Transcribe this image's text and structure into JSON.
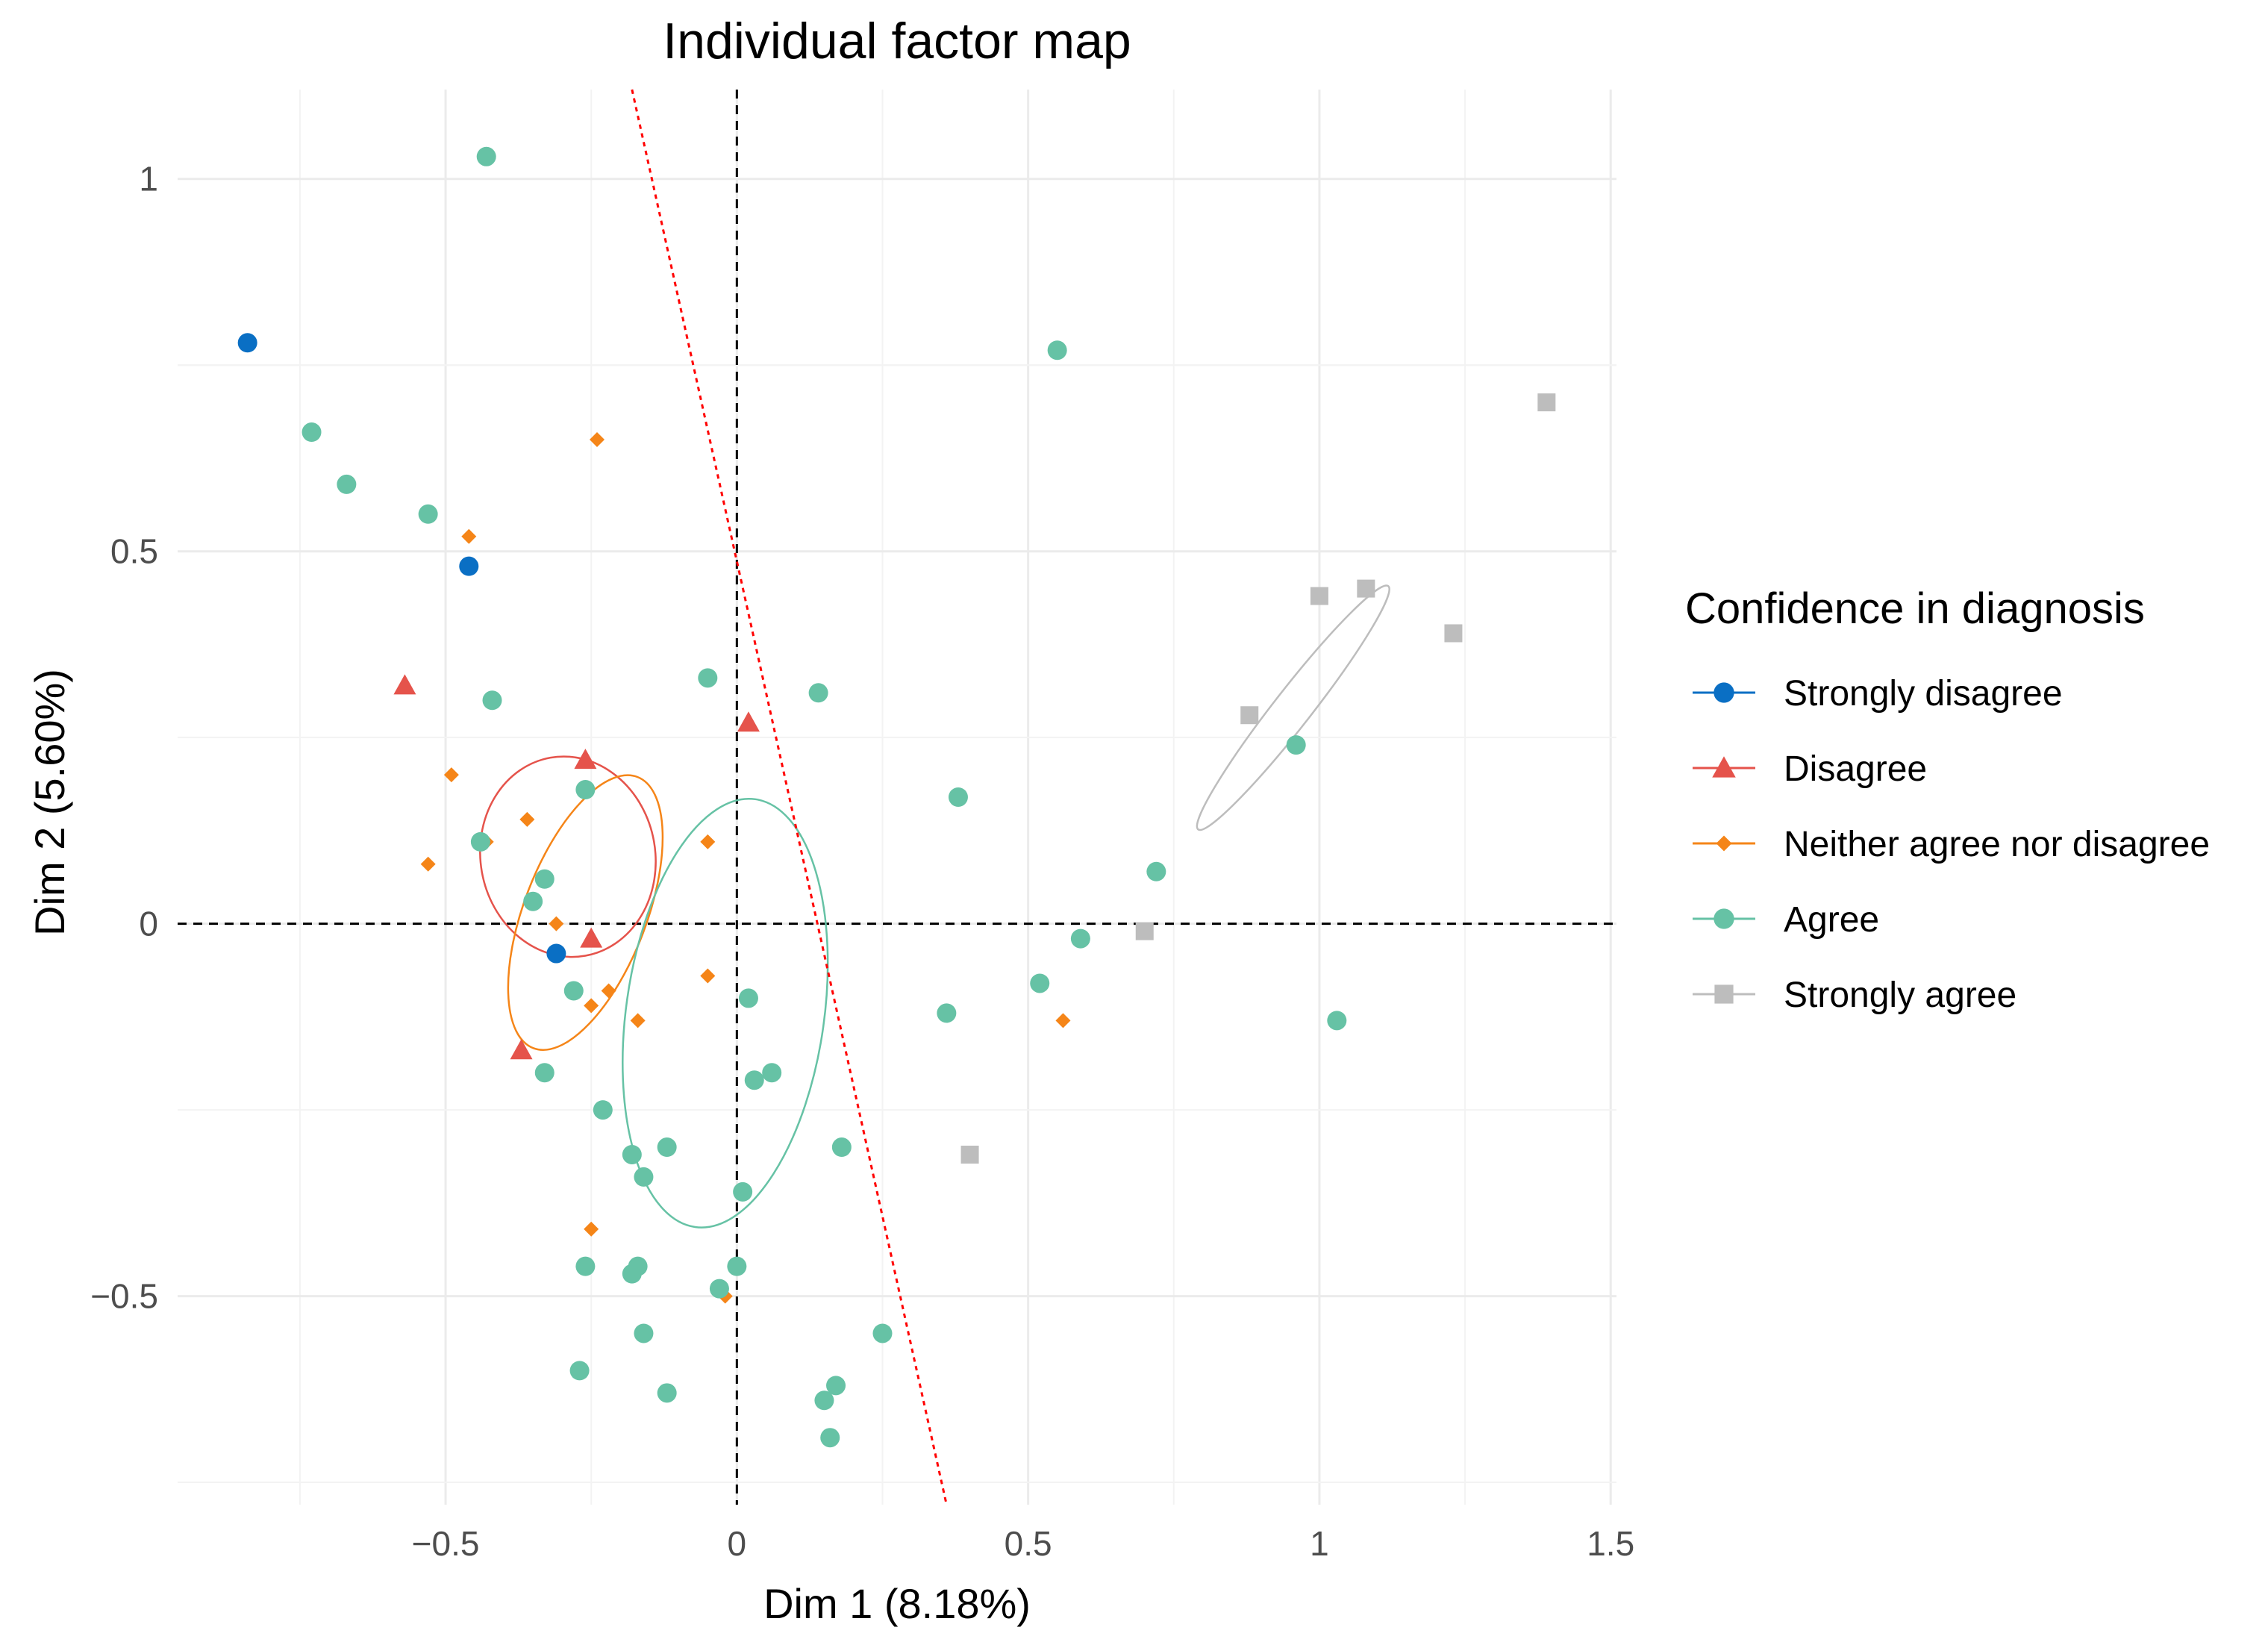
{
  "chart_data": {
    "type": "scatter",
    "title": "Individual factor map",
    "xlabel": "Dim 1 (8.18%)",
    "ylabel": "Dim 2 (5.60%)",
    "xlim": [
      -0.96,
      1.51
    ],
    "ylim": [
      -0.78,
      1.12
    ],
    "grid": true,
    "x_ticks": [
      -0.5,
      0,
      0.5,
      1,
      1.5
    ],
    "x_tick_labels": [
      "−0.5",
      "0",
      "0.5",
      "1",
      "1.5"
    ],
    "y_ticks": [
      -0.5,
      0,
      0.5,
      1
    ],
    "y_tick_labels": [
      "−0.5",
      "0",
      "0.5",
      "1"
    ],
    "reference_lines": {
      "x": 0,
      "y": 0,
      "style": "dashed"
    },
    "separator_line": {
      "color": "#ff0000",
      "style": "dotted",
      "from": [
        -0.18,
        1.12
      ],
      "to": [
        0.36,
        -0.78
      ]
    },
    "legend": {
      "title": "Confidence in diagnosis",
      "position": "right"
    },
    "series": [
      {
        "name": "Strongly disagree",
        "color": "#0a6fc4",
        "marker": "circle",
        "points": [
          [
            -0.84,
            0.78
          ],
          [
            -0.46,
            0.48
          ],
          [
            -0.31,
            -0.04
          ]
        ]
      },
      {
        "name": "Disagree",
        "color": "#e5534b",
        "marker": "triangle",
        "points": [
          [
            -0.57,
            0.32
          ],
          [
            -0.26,
            0.22
          ],
          [
            0.02,
            0.27
          ],
          [
            -0.25,
            -0.02
          ],
          [
            -0.37,
            -0.17
          ]
        ],
        "ellipse": {
          "cx": -0.29,
          "cy": 0.09,
          "rx": 0.15,
          "ry": 0.135,
          "angle_deg": -10
        }
      },
      {
        "name": "Neither agree nor disagree",
        "color": "#f58518",
        "marker": "diamond",
        "points": [
          [
            -0.24,
            0.65
          ],
          [
            -0.46,
            0.52
          ],
          [
            -0.49,
            0.2
          ],
          [
            -0.36,
            0.14
          ],
          [
            -0.43,
            0.11
          ],
          [
            -0.53,
            0.08
          ],
          [
            -0.05,
            0.11
          ],
          [
            -0.31,
            0.0
          ],
          [
            -0.05,
            -0.07
          ],
          [
            -0.22,
            -0.09
          ],
          [
            -0.25,
            -0.11
          ],
          [
            -0.17,
            -0.13
          ],
          [
            0.56,
            -0.13
          ],
          [
            -0.25,
            -0.41
          ],
          [
            -0.02,
            -0.5
          ]
        ],
        "ellipse": {
          "cx": -0.26,
          "cy": 0.015,
          "rx": 0.105,
          "ry": 0.195,
          "angle_deg": 21
        }
      },
      {
        "name": "Agree",
        "color": "#66c2a5",
        "marker": "circle",
        "points": [
          [
            -0.43,
            1.03
          ],
          [
            0.55,
            0.77
          ],
          [
            -0.73,
            0.66
          ],
          [
            -0.67,
            0.59
          ],
          [
            -0.53,
            0.55
          ],
          [
            -0.05,
            0.33
          ],
          [
            0.14,
            0.31
          ],
          [
            -0.42,
            0.3
          ],
          [
            -0.26,
            0.18
          ],
          [
            0.38,
            0.17
          ],
          [
            0.96,
            0.24
          ],
          [
            -0.44,
            0.11
          ],
          [
            -0.33,
            0.06
          ],
          [
            -0.35,
            0.03
          ],
          [
            0.72,
            0.07
          ],
          [
            0.59,
            -0.02
          ],
          [
            0.52,
            -0.08
          ],
          [
            0.36,
            -0.12
          ],
          [
            1.03,
            -0.13
          ],
          [
            -0.28,
            -0.09
          ],
          [
            0.02,
            -0.1
          ],
          [
            -0.33,
            -0.2
          ],
          [
            0.03,
            -0.21
          ],
          [
            0.06,
            -0.2
          ],
          [
            -0.23,
            -0.25
          ],
          [
            0.18,
            -0.3
          ],
          [
            -0.12,
            -0.3
          ],
          [
            -0.18,
            -0.31
          ],
          [
            -0.16,
            -0.34
          ],
          [
            0.01,
            -0.36
          ],
          [
            -0.26,
            -0.46
          ],
          [
            -0.18,
            -0.47
          ],
          [
            -0.17,
            -0.46
          ],
          [
            0.0,
            -0.46
          ],
          [
            -0.03,
            -0.49
          ],
          [
            -0.16,
            -0.55
          ],
          [
            0.25,
            -0.55
          ],
          [
            -0.27,
            -0.6
          ],
          [
            -0.12,
            -0.63
          ],
          [
            0.15,
            -0.64
          ],
          [
            0.17,
            -0.62
          ],
          [
            0.16,
            -0.69
          ]
        ],
        "ellipse": {
          "cx": -0.02,
          "cy": -0.12,
          "rx": 0.17,
          "ry": 0.29,
          "angle_deg": 8
        }
      },
      {
        "name": "Strongly agree",
        "color": "#bdbdbd",
        "marker": "square",
        "points": [
          [
            1.39,
            0.7
          ],
          [
            1.0,
            0.44
          ],
          [
            1.08,
            0.45
          ],
          [
            1.23,
            0.39
          ],
          [
            0.88,
            0.28
          ],
          [
            0.7,
            -0.01
          ],
          [
            0.4,
            -0.31
          ]
        ],
        "ellipse": {
          "cx": 0.955,
          "cy": 0.29,
          "rx": 0.265,
          "ry": 0.025,
          "angle_deg": -52
        }
      }
    ]
  }
}
